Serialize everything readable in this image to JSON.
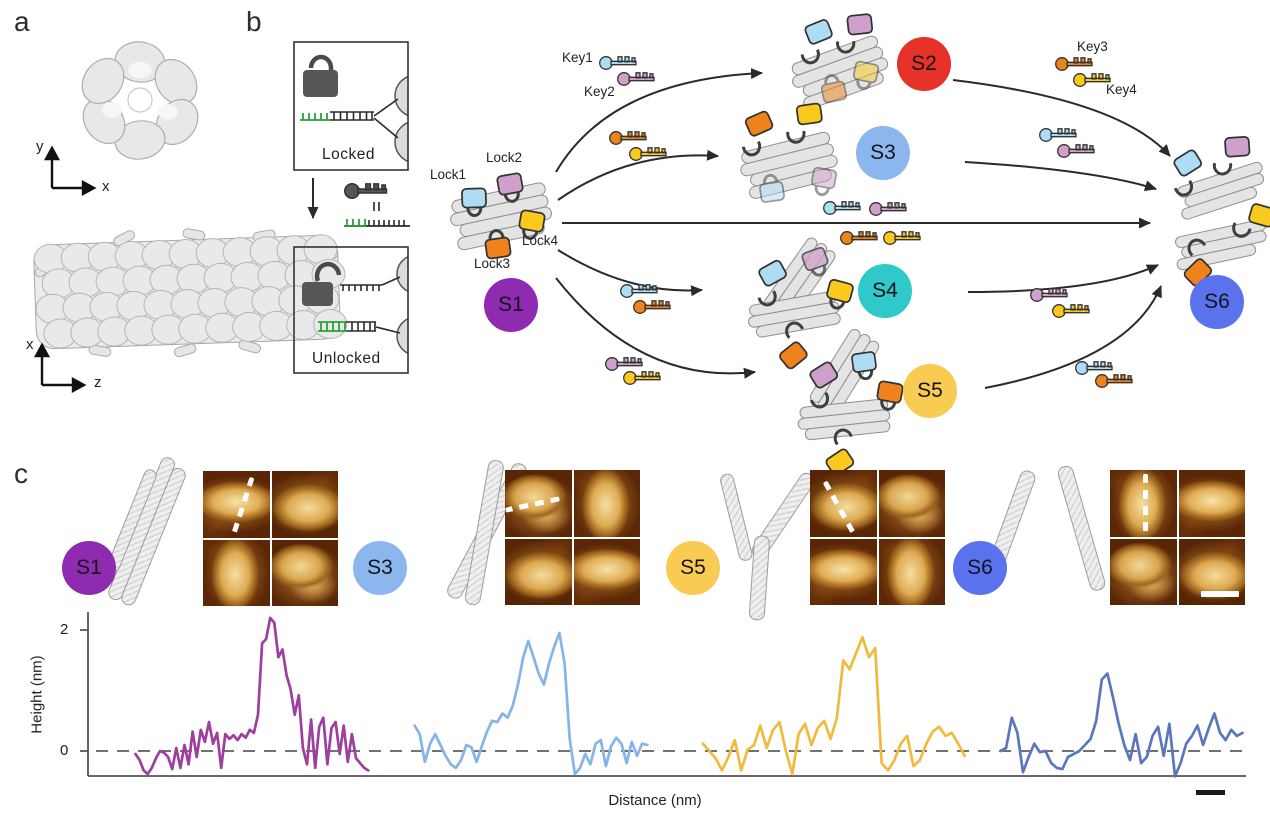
{
  "figure": {
    "panel_labels": {
      "a": "a",
      "b": "b",
      "c": "c"
    }
  },
  "panel_a": {
    "top_axes": {
      "vertical": "y",
      "horizontal": "x"
    },
    "bottom_axes": {
      "vertical": "x",
      "horizontal": "z"
    }
  },
  "panel_b": {
    "locked_box": {
      "label": "Locked"
    },
    "unlocked_box": {
      "label": "Unlocked"
    },
    "lock_labels": {
      "lock1": "Lock1",
      "lock2": "Lock2",
      "lock3": "Lock3",
      "lock4": "Lock4"
    },
    "key_labels": {
      "key1": "Key1",
      "key2": "Key2",
      "key3": "Key3",
      "key4": "Key4"
    },
    "lock_colors": {
      "lock1": "#aedcf4",
      "lock2": "#cfa0cb",
      "lock3": "#ee831c",
      "lock4": "#f9c91e"
    },
    "strand_colors": {
      "toehold_green": "#2e9e3e",
      "duplex_black": "#2b2b2b"
    },
    "padlock_color": "#565656",
    "states": {
      "s1": {
        "label": "S1",
        "color": "#8e2bb0"
      },
      "s2": {
        "label": "S2",
        "color": "#e63229"
      },
      "s3": {
        "label": "S3",
        "color": "#8cb6ee"
      },
      "s4": {
        "label": "S4",
        "color": "#30c9c9"
      },
      "s5": {
        "label": "S5",
        "color": "#f8cb52"
      },
      "s6": {
        "label": "S6",
        "color": "#5b72ee"
      }
    }
  },
  "panel_c": {
    "groups": [
      {
        "state": "S1",
        "circle_color": "#8e2bb0",
        "trace_color": "#9c3f9f"
      },
      {
        "state": "S3",
        "circle_color": "#8cb6ee",
        "trace_color": "#85b4e8"
      },
      {
        "state": "S5",
        "circle_color": "#f8cb52",
        "trace_color": "#f0bb3d"
      },
      {
        "state": "S6",
        "circle_color": "#5b72ee",
        "trace_color": "#5a77bd"
      }
    ]
  },
  "chart_data": {
    "type": "line",
    "title": "",
    "xlabel": "Distance (nm)",
    "ylabel": "Height (nm)",
    "yticks": [
      0,
      2
    ],
    "ylim": [
      -0.7,
      2.4
    ],
    "zero_line": "dashed",
    "grid": false,
    "legend": "none",
    "series": [
      {
        "name": "S1",
        "color": "#9c3f9f",
        "x_frac": [
          0.041,
          0.242
        ],
        "values": [
          -0.05,
          -0.15,
          -0.32,
          -0.38,
          -0.28,
          -0.12,
          0.0,
          -0.03,
          -0.1,
          -0.3,
          0.05,
          -0.28,
          0.1,
          -0.22,
          0.32,
          -0.1,
          0.35,
          0.15,
          0.48,
          0.12,
          0.3,
          -0.28,
          0.28,
          0.2,
          0.26,
          0.18,
          0.28,
          0.22,
          0.35,
          0.3,
          0.6,
          1.78,
          1.85,
          2.2,
          2.12,
          1.55,
          1.68,
          1.25,
          1.02,
          0.6,
          0.92,
          0.05,
          -0.22,
          0.52,
          -0.28,
          0.4,
          0.55,
          -0.22,
          0.38,
          0.48,
          -0.05,
          0.42,
          -0.18,
          0.28,
          -0.12,
          -0.2,
          -0.28,
          -0.32
        ]
      },
      {
        "name": "S3",
        "color": "#85b4e8",
        "x_frac": [
          0.282,
          0.483
        ],
        "values": [
          0.42,
          0.28,
          -0.18,
          0.12,
          0.28,
          0.1,
          -0.08,
          -0.22,
          -0.28,
          -0.15,
          0.1,
          0.06,
          -0.18,
          0.08,
          0.32,
          0.5,
          0.48,
          0.62,
          0.55,
          0.75,
          1.1,
          1.55,
          1.82,
          1.55,
          1.28,
          1.1,
          1.45,
          1.72,
          1.95,
          1.45,
          0.2,
          -0.38,
          -0.28,
          -0.05,
          -0.22,
          0.12,
          0.18,
          -0.25,
          0.08,
          0.22,
          0.12,
          -0.2,
          0.15,
          -0.08,
          0.12,
          0.1
        ]
      },
      {
        "name": "S5",
        "color": "#f0bb3d",
        "x_frac": [
          0.531,
          0.757
        ],
        "values": [
          0.12,
          0.0,
          -0.12,
          -0.32,
          -0.1,
          0.18,
          -0.32,
          0.02,
          0.1,
          0.42,
          0.05,
          0.35,
          0.48,
          0.0,
          -0.38,
          0.28,
          0.45,
          0.1,
          0.38,
          0.5,
          0.2,
          0.55,
          1.5,
          1.35,
          1.62,
          1.88,
          1.55,
          1.7,
          -0.2,
          -0.32,
          -0.15,
          0.12,
          0.25,
          -0.25,
          -0.15,
          0.12,
          0.32,
          0.4,
          0.25,
          0.3,
          0.12,
          -0.08
        ]
      },
      {
        "name": "S6",
        "color": "#5a77bd",
        "x_frac": [
          0.788,
          0.997
        ],
        "values": [
          0.0,
          0.05,
          0.55,
          0.3,
          -0.35,
          -0.1,
          0.12,
          -0.02,
          0.0,
          -0.2,
          -0.28,
          -0.3,
          -0.1,
          -0.05,
          0.0,
          0.1,
          0.2,
          0.5,
          1.18,
          1.28,
          0.88,
          0.45,
          0.1,
          -0.15,
          0.28,
          -0.2,
          -0.1,
          0.25,
          0.4,
          -0.08,
          0.45,
          -0.42,
          -0.2,
          0.12,
          0.25,
          0.42,
          0.1,
          0.38,
          0.62,
          0.3,
          0.18,
          0.35,
          0.25,
          0.3
        ]
      }
    ]
  }
}
